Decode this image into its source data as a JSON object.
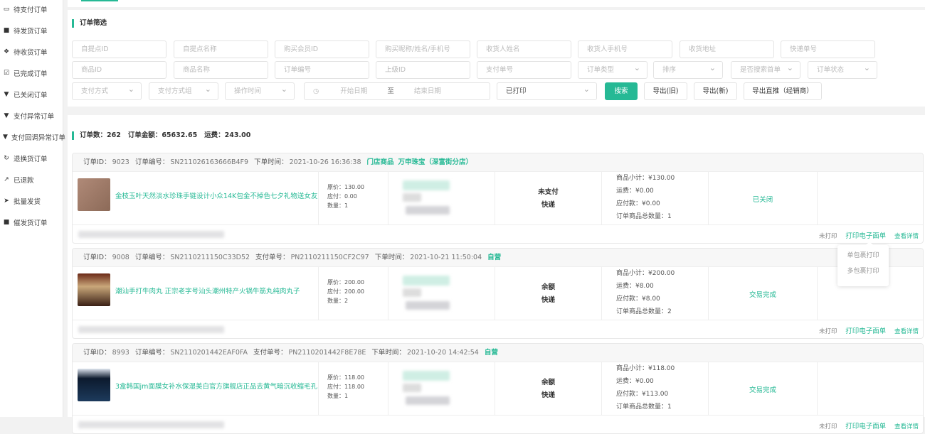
{
  "sidebar": {
    "items": [
      {
        "label": "待支付订单",
        "icon": "credit-card-icon"
      },
      {
        "label": "待发货订单",
        "icon": "truck-icon"
      },
      {
        "label": "待收货订单",
        "icon": "package-icon"
      },
      {
        "label": "已完成订单",
        "icon": "check-square-icon"
      },
      {
        "label": "已关闭订单",
        "icon": "cup-icon"
      },
      {
        "label": "支付异常订单",
        "icon": "cup-icon"
      },
      {
        "label": "支付回调异常订单",
        "icon": "cup-icon"
      },
      {
        "label": "退换货订单",
        "icon": "refresh-icon"
      },
      {
        "label": "已退款",
        "icon": "share-icon"
      },
      {
        "label": "批量发货",
        "icon": "send-icon"
      },
      {
        "label": "催发货订单",
        "icon": "truck-icon"
      }
    ]
  },
  "filter": {
    "title": "订单筛选",
    "row1": [
      "自提点ID",
      "自提点名称",
      "购买会员ID",
      "购买昵称/姓名/手机号",
      "收货人姓名",
      "收货人手机号",
      "收货地址",
      "快递单号"
    ],
    "row2_inputs": [
      "商品ID",
      "商品名称",
      "订单编号",
      "上级ID",
      "支付单号"
    ],
    "row2_selects": [
      "订单类型",
      "排序",
      "是否搜索首单",
      "订单状态"
    ],
    "row3_selects": [
      "支付方式",
      "支付方式组",
      "操作时间"
    ],
    "date_start": "开始日期",
    "date_sep": "至",
    "date_end": "结束日期",
    "printed_select": "已打印",
    "search": "搜索",
    "export_old": "导出(旧)",
    "export_new": "导出(新)",
    "export_direct": "导出直推（经销商）"
  },
  "summary": {
    "count_label": "订单数：",
    "count": "262",
    "amount_label": "订单金额：",
    "amount": "65632.65",
    "freight_label": "运费：",
    "freight": "243.00"
  },
  "orders": [
    {
      "id": "9023",
      "sn": "SN211026163666B4F9",
      "pay_sn": "",
      "time": "2021-10-26 16:36:38",
      "tags": [
        "门店商品",
        "万申珠宝（深富街分店）"
      ],
      "product": "金枝玉叶天然淡水珍珠手链设计小众14K包金不掉色七夕礼物送女友",
      "price": "130.00",
      "payable": "0.00",
      "qty": "1",
      "pay": "未支付",
      "ship": "快递",
      "subtotal": "¥130.00",
      "freight": "¥0.00",
      "due": "¥0.00",
      "total_qty": "1",
      "state": "已关闭"
    },
    {
      "id": "9008",
      "sn": "SN2110211150C33D52",
      "pay_sn": "PN2110211150CF2C97",
      "time": "2021-10-21 11:50:04",
      "tags": [
        "自营"
      ],
      "product": "潮汕手打牛肉丸 正宗老字号汕头潮州特产火锅牛筋丸纯肉丸子",
      "price": "200.00",
      "payable": "200.00",
      "qty": "2",
      "pay": "余额",
      "ship": "快递",
      "subtotal": "¥200.00",
      "freight": "¥8.00",
      "due": "¥8.00",
      "total_qty": "2",
      "state": "交易完成"
    },
    {
      "id": "8993",
      "sn": "SN2110201442EAF0FA",
      "pay_sn": "PN2110201442F8E78E",
      "time": "2021-10-20 14:42:54",
      "tags": [
        "自营"
      ],
      "product": "3盒韩国jm面膜女补水保湿美白官方旗舰店正品去黄气暗沉收缩毛孔",
      "price": "118.00",
      "payable": "118.00",
      "qty": "1",
      "pay": "余额",
      "ship": "快递",
      "subtotal": "¥118.00",
      "freight": "¥0.00",
      "due": "¥113.00",
      "total_qty": "1",
      "state": "交易完成"
    }
  ],
  "labels": {
    "id": "订单ID：",
    "sn": "订单编号：",
    "pay_sn": "支付单号：",
    "time": "下单时间：",
    "price": "原价：",
    "payable": "应付：",
    "qty": "数量：",
    "subtotal": "商品小计：",
    "freight": "运费：",
    "due": "应付款：",
    "total_qty": "订单商品总数量："
  },
  "ops": {
    "unprinted": "未打印",
    "print": "打印电子面单",
    "detail": "查看详情"
  },
  "popup": {
    "single": "单包裹打印",
    "multi": "多包裹打印"
  },
  "colors": {
    "accent": "#26b995"
  }
}
